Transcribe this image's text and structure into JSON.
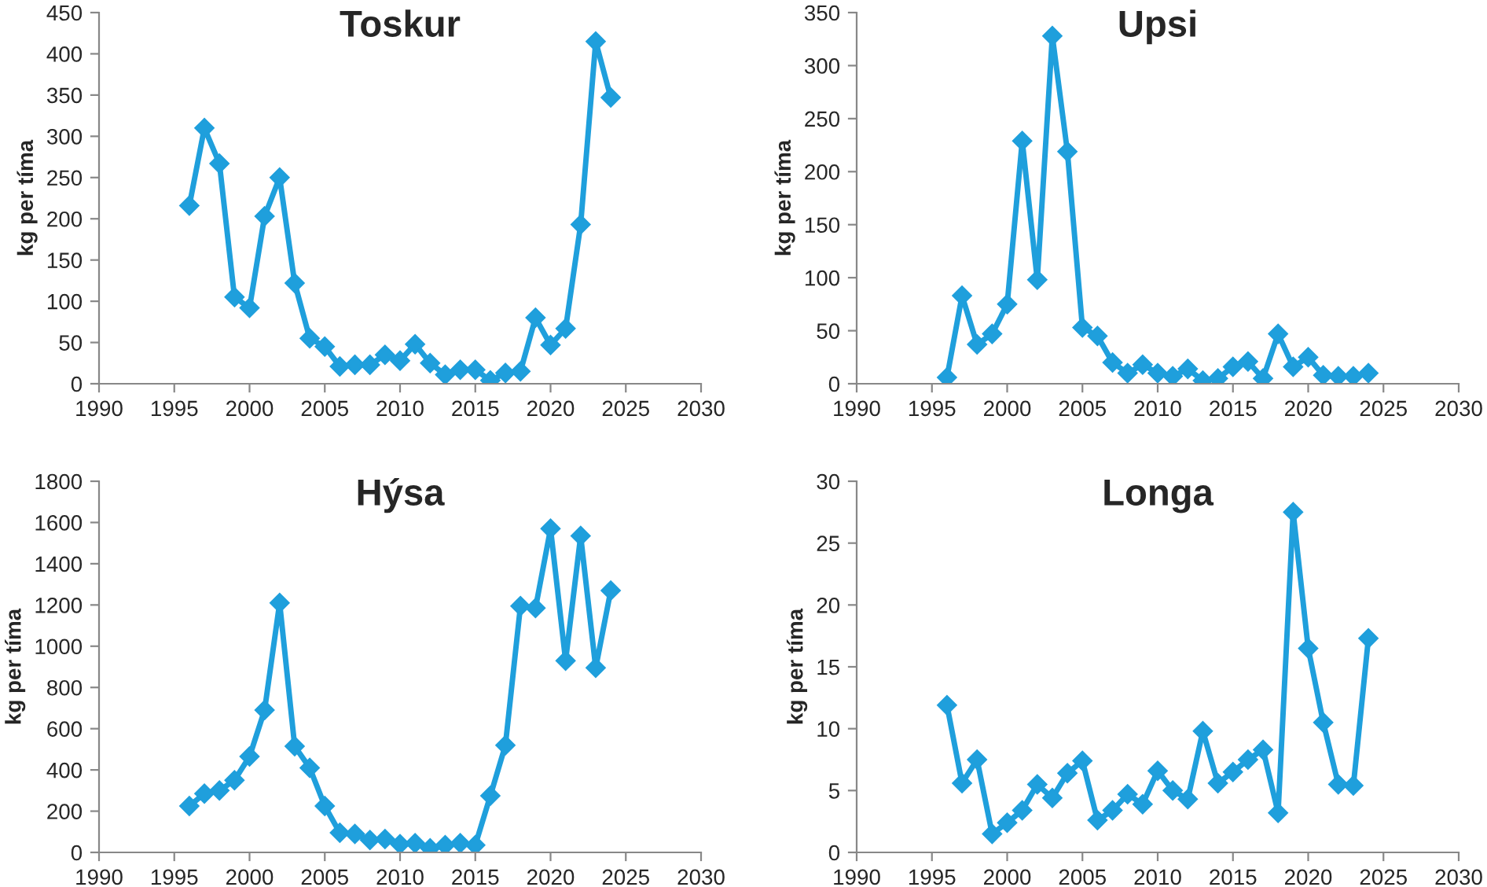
{
  "chart_data": [
    {
      "type": "line",
      "title": "Toskur",
      "ylabel": "kg per tíma",
      "x": [
        1996,
        1997,
        1998,
        1999,
        2000,
        2001,
        2002,
        2003,
        2004,
        2005,
        2006,
        2007,
        2008,
        2009,
        2010,
        2011,
        2012,
        2013,
        2014,
        2015,
        2016,
        2017,
        2018,
        2019,
        2020,
        2021,
        2022,
        2023,
        2024
      ],
      "series": [
        {
          "color": "#1f9fdc",
          "values": [
            216,
            310,
            267,
            105,
            92,
            203,
            250,
            122,
            55,
            45,
            21,
            23,
            23,
            35,
            28,
            48,
            25,
            11,
            17,
            17,
            4,
            13,
            15,
            80,
            47,
            67,
            193,
            415,
            347
          ]
        }
      ],
      "xlim": [
        1990,
        2030
      ],
      "xticks": [
        1990,
        1995,
        2000,
        2005,
        2010,
        2015,
        2020,
        2025,
        2030
      ],
      "ylim": [
        0,
        450
      ],
      "yticks": [
        0,
        50,
        100,
        150,
        200,
        250,
        300,
        350,
        400,
        450
      ],
      "marker": "diamond",
      "line_style": "solid"
    },
    {
      "type": "line",
      "title": "Upsi",
      "ylabel": "kg per tíma",
      "x": [
        1996,
        1997,
        1998,
        1999,
        2000,
        2001,
        2002,
        2003,
        2004,
        2005,
        2006,
        2007,
        2008,
        2009,
        2010,
        2011,
        2012,
        2013,
        2014,
        2015,
        2016,
        2017,
        2018,
        2019,
        2020,
        2021,
        2022,
        2023,
        2024
      ],
      "series": [
        {
          "color": "#1f9fdc",
          "values": [
            6,
            83,
            37,
            47,
            75,
            229,
            98,
            328,
            219,
            53,
            45,
            20,
            10,
            18,
            10,
            7,
            14,
            3,
            5,
            16,
            21,
            5,
            47,
            16,
            25,
            8,
            7,
            7,
            10
          ]
        }
      ],
      "xlim": [
        1990,
        2030
      ],
      "xticks": [
        1990,
        1995,
        2000,
        2005,
        2010,
        2015,
        2020,
        2025,
        2030
      ],
      "ylim": [
        0,
        350
      ],
      "yticks": [
        0,
        50,
        100,
        150,
        200,
        250,
        300,
        350
      ],
      "marker": "diamond",
      "line_style": "solid"
    },
    {
      "type": "line",
      "title": "Hýsa",
      "ylabel": "kg per tíma",
      "x": [
        1996,
        1997,
        1998,
        1999,
        2000,
        2001,
        2002,
        2003,
        2004,
        2005,
        2006,
        2007,
        2008,
        2009,
        2010,
        2011,
        2012,
        2013,
        2014,
        2015,
        2016,
        2017,
        2018,
        2019,
        2020,
        2021,
        2022,
        2023,
        2024
      ],
      "series": [
        {
          "color": "#1f9fdc",
          "values": [
            225,
            285,
            300,
            350,
            465,
            690,
            1210,
            515,
            410,
            225,
            95,
            90,
            60,
            65,
            40,
            45,
            20,
            35,
            45,
            35,
            275,
            520,
            1195,
            1185,
            1570,
            930,
            1535,
            895,
            1270
          ]
        }
      ],
      "xlim": [
        1990,
        2030
      ],
      "xticks": [
        1990,
        1995,
        2000,
        2005,
        2010,
        2015,
        2020,
        2025,
        2030
      ],
      "ylim": [
        0,
        1800
      ],
      "yticks": [
        0,
        200,
        400,
        600,
        800,
        1000,
        1200,
        1400,
        1600,
        1800
      ],
      "marker": "diamond",
      "line_style": "solid"
    },
    {
      "type": "line",
      "title": "Longa",
      "ylabel": "kg per tíma",
      "x": [
        1996,
        1997,
        1998,
        1999,
        2000,
        2001,
        2002,
        2003,
        2004,
        2005,
        2006,
        2007,
        2008,
        2009,
        2010,
        2011,
        2012,
        2013,
        2014,
        2015,
        2016,
        2017,
        2018,
        2019,
        2020,
        2021,
        2022,
        2023,
        2024
      ],
      "series": [
        {
          "color": "#1f9fdc",
          "values": [
            11.9,
            5.6,
            7.5,
            1.5,
            2.4,
            3.4,
            5.5,
            4.4,
            6.4,
            7.4,
            2.6,
            3.4,
            4.7,
            3.9,
            6.6,
            5.0,
            4.3,
            9.8,
            5.6,
            6.5,
            7.5,
            8.3,
            3.2,
            27.5,
            16.5,
            10.5,
            5.5,
            5.4,
            17.3
          ]
        }
      ],
      "xlim": [
        1990,
        2030
      ],
      "xticks": [
        1990,
        1995,
        2000,
        2005,
        2010,
        2015,
        2020,
        2025,
        2030
      ],
      "ylim": [
        0,
        30
      ],
      "yticks": [
        0,
        5,
        10,
        15,
        20,
        25,
        30
      ],
      "marker": "diamond",
      "line_style": "solid"
    }
  ]
}
